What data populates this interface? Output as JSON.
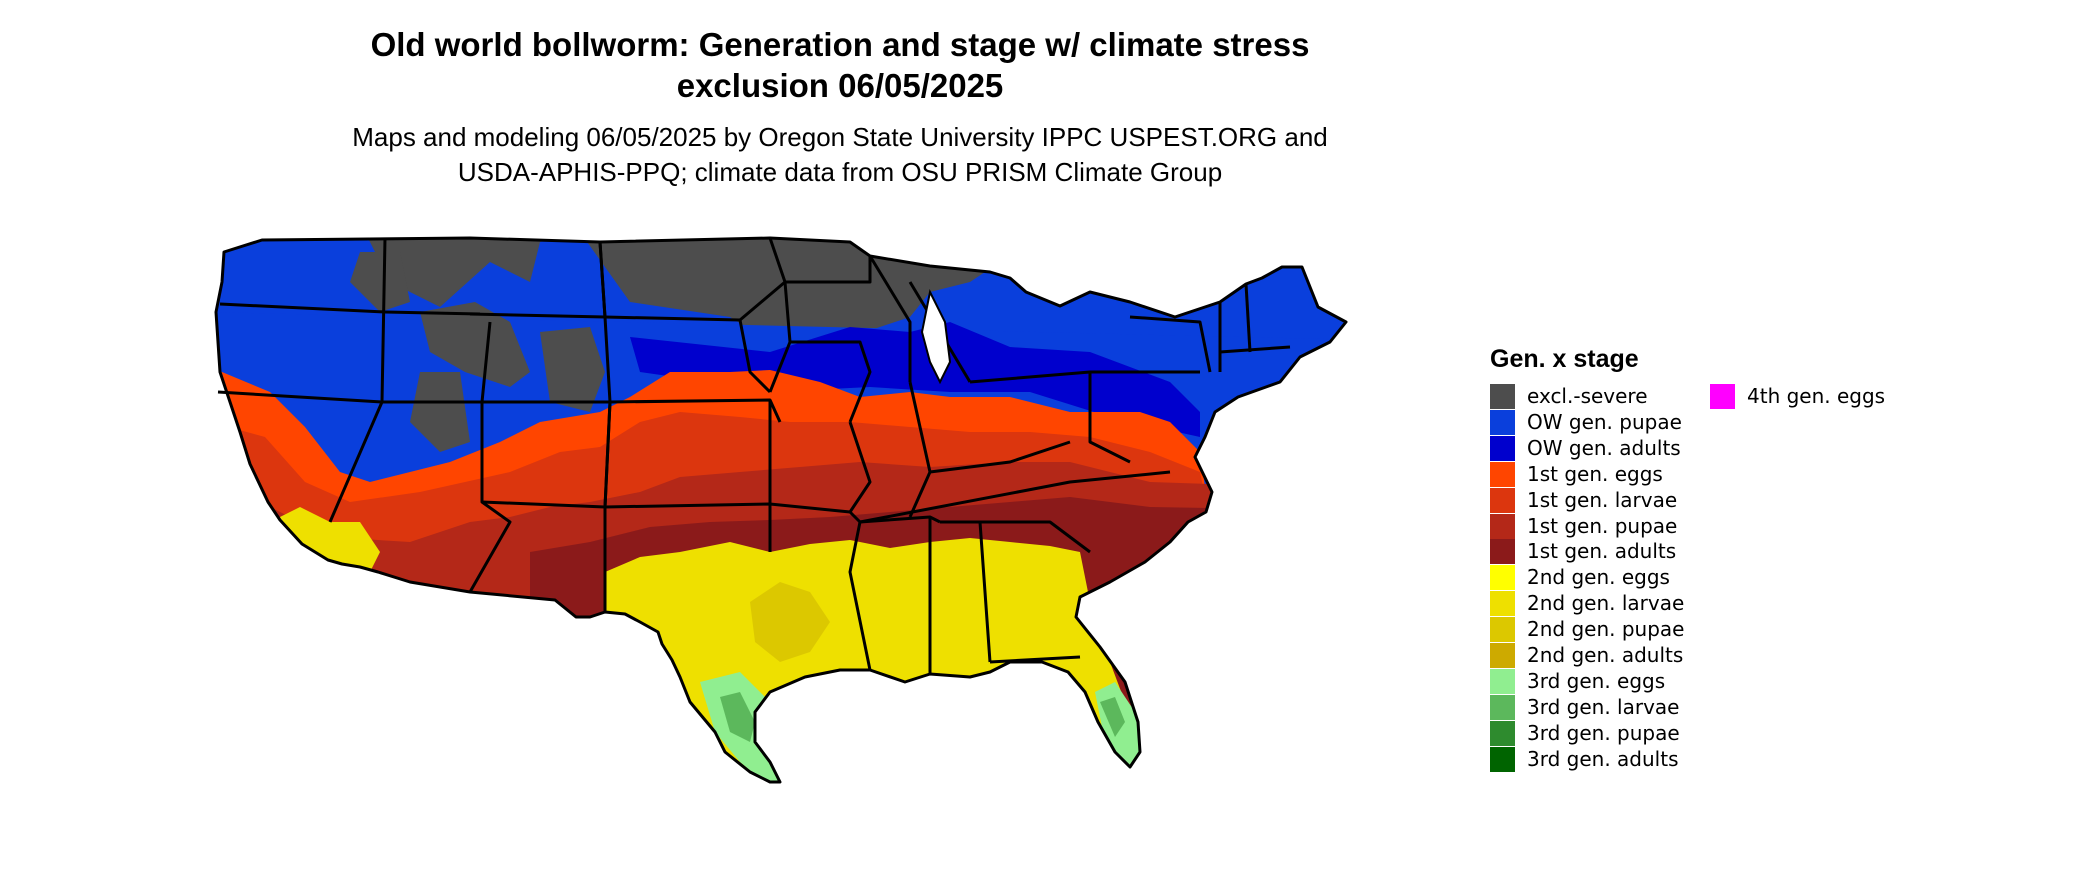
{
  "title_line1": "Old world bollworm: Generation and stage w/ climate stress",
  "title_line2": "exclusion 06/05/2025",
  "subtitle_line1": "Maps and modeling 06/05/2025 by Oregon State University IPPC USPEST.ORG and",
  "subtitle_line2": "USDA-APHIS-PPQ; climate data from OSU PRISM Climate Group",
  "map": {
    "region": "Contiguous United States",
    "outline_color": "#000000"
  },
  "legend": {
    "title": "Gen. x stage",
    "items": [
      {
        "label": "excl.-severe",
        "color": "#4d4d4d"
      },
      {
        "label": "OW gen. pupae",
        "color": "#0a3fdc"
      },
      {
        "label": "OW gen. adults",
        "color": "#0000cd"
      },
      {
        "label": "1st gen. eggs",
        "color": "#ff4500"
      },
      {
        "label": "1st gen. larvae",
        "color": "#dc360e"
      },
      {
        "label": "1st gen. pupae",
        "color": "#b42818"
      },
      {
        "label": "1st gen. adults",
        "color": "#8b1a1a"
      },
      {
        "label": "2nd gen. eggs",
        "color": "#ffff00"
      },
      {
        "label": "2nd gen. larvae",
        "color": "#eee000"
      },
      {
        "label": "2nd gen. pupae",
        "color": "#dcc800"
      },
      {
        "label": "2nd gen. adults",
        "color": "#cdaa00"
      },
      {
        "label": "3rd gen. eggs",
        "color": "#90ee90"
      },
      {
        "label": "3rd gen. larvae",
        "color": "#5cb85c"
      },
      {
        "label": "3rd gen. pupae",
        "color": "#2e8b2e"
      },
      {
        "label": "3rd gen. adults",
        "color": "#006400"
      },
      {
        "label": "4th gen. eggs",
        "color": "#ff00ff"
      }
    ]
  }
}
